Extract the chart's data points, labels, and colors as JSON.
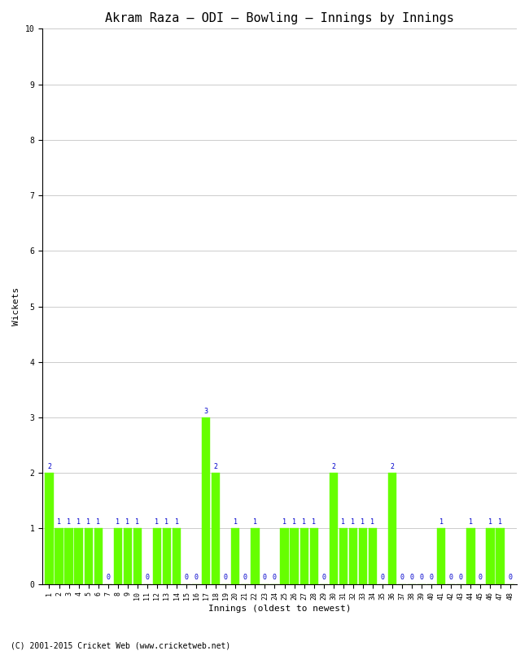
{
  "title": "Akram Raza – ODI – Bowling – Innings by Innings",
  "xlabel": "Innings (oldest to newest)",
  "ylabel": "Wickets",
  "ylim": [
    0,
    10
  ],
  "yticks": [
    0,
    1,
    2,
    3,
    4,
    5,
    6,
    7,
    8,
    9,
    10
  ],
  "bar_color": "#66ff00",
  "label_color": "#0000cc",
  "background_color": "#ffffff",
  "grid_color": "#cccccc",
  "copyright": "(C) 2001-2015 Cricket Web (www.cricketweb.net)",
  "wickets": [
    2,
    1,
    1,
    1,
    1,
    1,
    0,
    1,
    1,
    1,
    0,
    1,
    1,
    1,
    0,
    0,
    3,
    2,
    0,
    1,
    0,
    1,
    0,
    0,
    1,
    1,
    1,
    1,
    0,
    2,
    1,
    1,
    1,
    1,
    0,
    2,
    0,
    0,
    0,
    0,
    1,
    0,
    0,
    1,
    0,
    1,
    1,
    0
  ],
  "figsize": [
    6.5,
    8.0
  ],
  "dpi": 100,
  "title_fontsize": 11,
  "axis_label_fontsize": 8,
  "tick_fontsize": 6,
  "bar_label_fontsize": 6,
  "copyright_fontsize": 7
}
